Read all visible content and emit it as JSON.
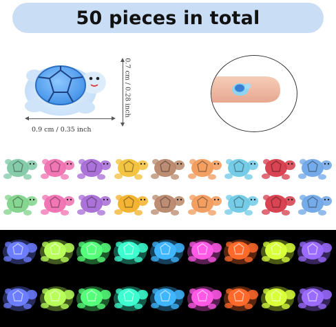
{
  "banner": {
    "title": "50 pieces in total"
  },
  "dimensions": {
    "width_label": "0.9 cm / 0.35 inch",
    "height_label": "0.7 cm / 0.28 inch"
  },
  "colors": {
    "banner_bg": "#c9def4",
    "dark_panel": "#000000"
  },
  "daylight_rows": [
    [
      "#7fc9a7",
      "#f06fb0",
      "#a66ad6",
      "#f2c038",
      "#b8876a",
      "#f29a5a",
      "#6ec9e6",
      "#d63a48",
      "#6fa6e8"
    ],
    [
      "#7fd38a",
      "#f06fb0",
      "#a66ad6",
      "#f2b028",
      "#b8876a",
      "#f29a5a",
      "#6ec9e6",
      "#d63a48",
      "#6fa6e8"
    ]
  ],
  "glow_rows": [
    [
      "#6c7dff",
      "#b9ff5a",
      "#55ff7a",
      "#3dffd0",
      "#3fb6ff",
      "#ff59e6",
      "#ff6a2a",
      "#d8ff3a",
      "#9b6bff"
    ],
    [
      "#6c7dff",
      "#b9ff5a",
      "#55ff7a",
      "#3dffd0",
      "#3fb6ff",
      "#ff59e6",
      "#ff6a2a",
      "#d8ff3a",
      "#9b6bff"
    ]
  ]
}
